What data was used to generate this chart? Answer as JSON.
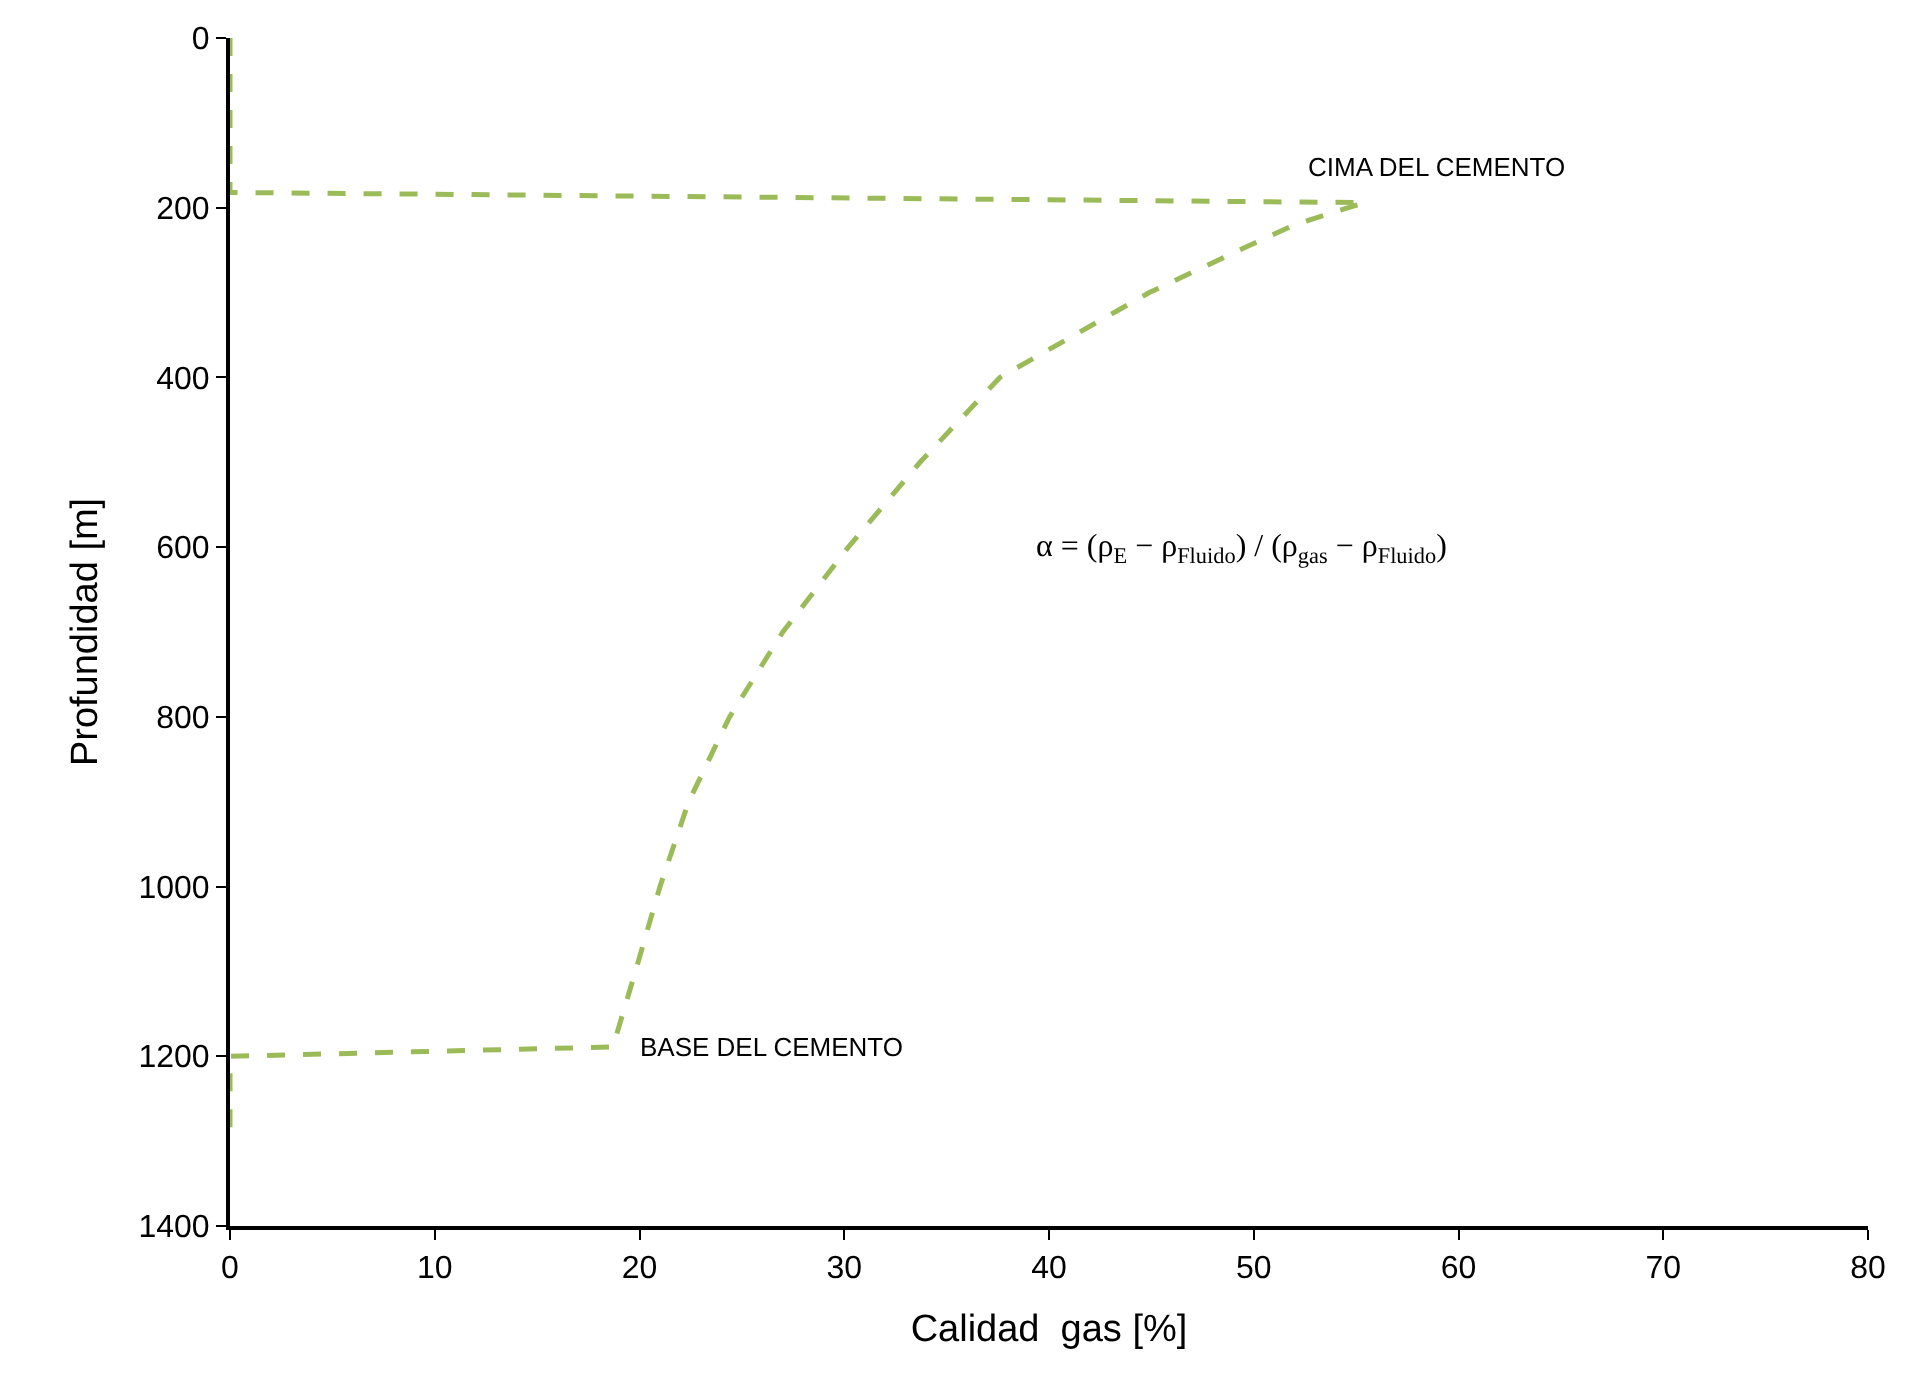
{
  "chart_data": {
    "type": "line",
    "xlabel": "Calidad  gas [%]",
    "ylabel": "Profundidad [m]",
    "x": [
      0,
      0,
      55.4,
      52,
      49.3,
      44.9,
      37.6,
      33.7,
      30.2,
      27,
      24.4,
      22.4,
      21,
      19.8,
      18.7,
      0,
      0
    ],
    "values": [
      0,
      182,
      194,
      220,
      250,
      300,
      400,
      500,
      600,
      700,
      800,
      900,
      1000,
      1100,
      1189,
      1200,
      1292
    ],
    "color": "#9bbb59",
    "line_style": "dashed",
    "marker": "none",
    "xlim": [
      0,
      80
    ],
    "xticks": [
      0,
      10,
      20,
      30,
      40,
      50,
      60,
      70,
      80
    ],
    "ylim": [
      1400,
      0
    ],
    "yticks": [
      0,
      200,
      400,
      600,
      800,
      1000,
      1200,
      1400
    ],
    "annotations": [
      {
        "text": "CIMA DEL CEMENTO",
        "x": 55.4,
        "y": 194
      },
      {
        "text": "BASE DEL CEMENTO",
        "x": 18.7,
        "y": 1189
      },
      "α = (ρ$_{E}$ − ρ$_{Fluido}$) / (ρ$_{gas}$ − ρ$_{Fluido}$)"
    ]
  }
}
